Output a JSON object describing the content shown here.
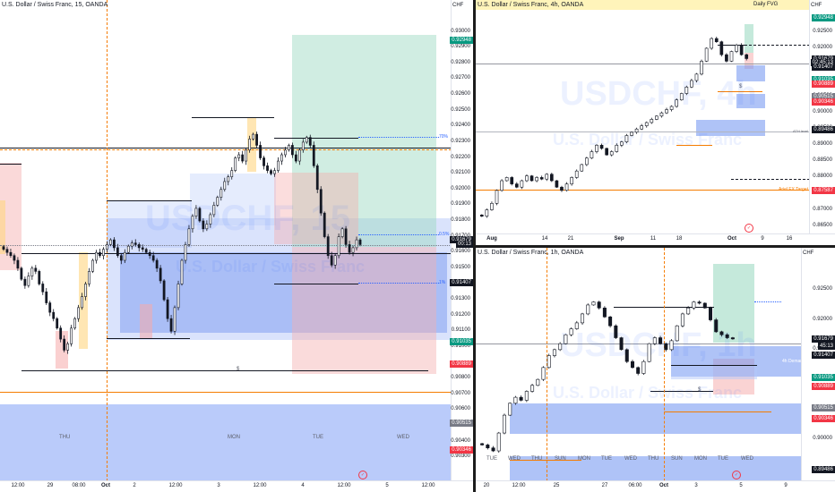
{
  "colors": {
    "blue_zone": "#9db5f5",
    "green_zone": "#b8e6d6",
    "red_zone": "#f5c4c4",
    "orange": "#f57c00",
    "bull": "#131722",
    "axis_text": "#131722"
  },
  "icons": [
    "tradingview-icon"
  ],
  "chart_data": [
    {
      "type": "candlestick",
      "title": "U.S. Dollar / Swiss Franc, 15, OANDA",
      "currency": "CHF",
      "watermark_symbol": "USDCHF, 15",
      "watermark_name": "U.S. Dollar / Swiss Franc",
      "y_ticks": [
        "0.93000",
        "0.92900",
        "0.92800",
        "0.92700",
        "0.92600",
        "0.92500",
        "0.92400",
        "0.92300",
        "0.92200",
        "0.92100",
        "0.92000",
        "0.91900",
        "0.91800",
        "0.91700",
        "0.91600",
        "0.91500",
        "0.91300",
        "0.91200",
        "0.91100",
        "0.91000",
        "0.90800",
        "0.90700",
        "0.90600",
        "0.90500",
        "0.90400",
        "0.90300"
      ],
      "ylim": [
        0.9025,
        0.931
      ],
      "price_badges": [
        {
          "text": "0.92948",
          "color": "#089981",
          "value": 0.92948
        },
        {
          "text": "0.91679",
          "color": "#131722",
          "value": 0.91679
        },
        {
          "text": "00:13",
          "color": "#131722",
          "value": 0.91655
        },
        {
          "text": "0.91407",
          "color": "#131722",
          "value": 0.91407
        },
        {
          "text": "0.91035",
          "color": "#089981",
          "value": 0.91035
        },
        {
          "text": "0.90889",
          "color": "#f23645",
          "value": 0.90889
        },
        {
          "text": "0.90515",
          "color": "#787b86",
          "value": 0.90515
        },
        {
          "text": "0.90346",
          "color": "#f23645",
          "value": 0.90346
        }
      ],
      "x_ticks": [
        "12:00",
        "29",
        "08:00",
        "Oct",
        "2",
        "12:00",
        "3",
        "12:00",
        "4",
        "12:00",
        "5",
        "12:00"
      ],
      "session_labels": [
        "THU",
        "MON",
        "TUE",
        "WED"
      ],
      "line_labels": [
        "$"
      ],
      "series": [
        {
          "values": [
            0.9162,
            0.916,
            0.9158,
            0.9155,
            0.915,
            0.9143,
            0.9139,
            0.9145,
            0.915,
            0.9148,
            0.914,
            0.9135,
            0.9128,
            0.9122,
            0.9118,
            0.9112,
            0.9105,
            0.9098,
            0.9102,
            0.9112,
            0.9118,
            0.9125,
            0.9132,
            0.914,
            0.9148,
            0.9155,
            0.916,
            0.9158,
            0.9162,
            0.9165,
            0.9168,
            0.9163,
            0.9158,
            0.9155,
            0.916,
            0.9164,
            0.9166,
            0.9165,
            0.9163,
            0.9162,
            0.916,
            0.9158,
            0.9155,
            0.915,
            0.9142,
            0.913,
            0.9118,
            0.911,
            0.9125,
            0.914,
            0.9155,
            0.9165,
            0.9175,
            0.9183,
            0.9188,
            0.918,
            0.9175,
            0.9178,
            0.9184,
            0.919,
            0.9195,
            0.92,
            0.9205,
            0.9208,
            0.9212,
            0.922,
            0.9222,
            0.9218,
            0.9225,
            0.9232,
            0.9235,
            0.9228,
            0.922,
            0.9215,
            0.9212,
            0.921,
            0.9212,
            0.9218,
            0.9222,
            0.9225,
            0.9228,
            0.9222,
            0.9218,
            0.9225,
            0.923,
            0.9233,
            0.9228,
            0.9215,
            0.92,
            0.9185,
            0.917,
            0.9158,
            0.9152,
            0.9158,
            0.917,
            0.9175,
            0.9165,
            0.916,
            0.9163,
            0.9168,
            0.9165
          ]
        }
      ]
    },
    {
      "type": "candlestick",
      "title": "U.S. Dollar / Swiss Franc, 4h, OANDA",
      "currency": "CHF",
      "banner": "Daily FVG",
      "watermark_symbol": "USDCHF, 4h",
      "watermark_name": "U.S. Dollar / Swiss Franc",
      "y_ticks": [
        "0.92500",
        "0.92000",
        "0.91500",
        "0.91000",
        "0.90500",
        "0.90000",
        "0.89500",
        "0.89000",
        "0.88500",
        "0.88000",
        "0.87500",
        "0.87000",
        "0.86500"
      ],
      "ylim": [
        0.8635,
        0.9305
      ],
      "price_badges": [
        {
          "text": "0.92948",
          "color": "#089981",
          "value": 0.92948
        },
        {
          "text": "0.91679",
          "color": "#131722",
          "value": 0.91679
        },
        {
          "text": "02:45:13",
          "color": "#131722",
          "value": 0.9156
        },
        {
          "text": "0.91407",
          "color": "#131722",
          "value": 0.91407
        },
        {
          "text": "0.91035",
          "color": "#089981",
          "value": 0.91035
        },
        {
          "text": "0.90889",
          "color": "#f23645",
          "value": 0.90889
        },
        {
          "text": "0.90515",
          "color": "#787b86",
          "value": 0.90515
        },
        {
          "text": "0.90346",
          "color": "#f23645",
          "value": 0.90346
        },
        {
          "text": "0.89486",
          "color": "#131722",
          "value": 0.89486
        },
        {
          "text": "0.87587",
          "color": "#f23645",
          "value": 0.87587
        }
      ],
      "x_ticks": [
        "Aug",
        "14",
        "21",
        "Sep",
        "11",
        "18",
        "Oct",
        "9",
        "16"
      ],
      "line_labels": [
        "ATH level",
        "Ariel FX Target",
        "$"
      ],
      "series": [
        {
          "values": [
            0.868,
            0.87,
            0.872,
            0.876,
            0.879,
            0.88,
            0.878,
            0.877,
            0.879,
            0.8805,
            0.879,
            0.88,
            0.8795,
            0.881,
            0.879,
            0.877,
            0.876,
            0.878,
            0.88,
            0.882,
            0.884,
            0.886,
            0.888,
            0.89,
            0.889,
            0.887,
            0.888,
            0.89,
            0.891,
            0.893,
            0.894,
            0.895,
            0.896,
            0.897,
            0.898,
            0.899,
            0.9,
            0.901,
            0.902,
            0.904,
            0.906,
            0.908,
            0.91,
            0.912,
            0.916,
            0.92,
            0.923,
            0.922,
            0.918,
            0.916,
            0.919,
            0.921,
            0.918,
            0.9168
          ]
        }
      ]
    },
    {
      "type": "candlestick",
      "title": "U.S. Dollar / Swiss Franc, 1h, OANDA",
      "currency": "CHF",
      "watermark_symbol": "USDCHF, 1h",
      "watermark_name": "U.S. Dollar / Swiss Franc",
      "y_ticks": [
        "0.92500",
        "0.92000",
        "0.91500",
        "0.91000",
        "0.90500",
        "0.90000"
      ],
      "ylim": [
        0.8935,
        0.93
      ],
      "price_badges": [
        {
          "text": "0.91679",
          "color": "#131722",
          "value": 0.91679
        },
        {
          "text": "45:13",
          "color": "#131722",
          "value": 0.9156
        },
        {
          "text": "0.91407",
          "color": "#131722",
          "value": 0.91407
        },
        {
          "text": "0.91035",
          "color": "#089981",
          "value": 0.91035
        },
        {
          "text": "0.90889",
          "color": "#f23645",
          "value": 0.90889
        },
        {
          "text": "0.90515",
          "color": "#787b86",
          "value": 0.90515
        },
        {
          "text": "0.90346",
          "color": "#f23645",
          "value": 0.90346
        },
        {
          "text": "0.89486",
          "color": "#131722",
          "value": 0.89486
        }
      ],
      "x_ticks": [
        "20",
        "12:00",
        "25",
        "27",
        "06:00",
        "Oct",
        "3",
        "5",
        "9"
      ],
      "session_labels": [
        "TUE",
        "WED",
        "THU",
        "SUN",
        "MON",
        "TUE",
        "WED",
        "THU",
        "SUN",
        "MON",
        "TUE",
        "WED"
      ],
      "line_labels": [
        "4h Demand",
        "$"
      ],
      "series": [
        {
          "values": [
            0.899,
            0.8985,
            0.898,
            0.901,
            0.904,
            0.906,
            0.907,
            0.9065,
            0.908,
            0.909,
            0.91,
            0.912,
            0.914,
            0.915,
            0.916,
            0.9175,
            0.9185,
            0.9195,
            0.921,
            0.9225,
            0.923,
            0.922,
            0.9205,
            0.919,
            0.917,
            0.915,
            0.913,
            0.912,
            0.911,
            0.913,
            0.916,
            0.917,
            0.916,
            0.915,
            0.9165,
            0.919,
            0.921,
            0.922,
            0.923,
            0.9228,
            0.922,
            0.92,
            0.918,
            0.9175,
            0.917,
            0.9168
          ]
        }
      ]
    }
  ]
}
